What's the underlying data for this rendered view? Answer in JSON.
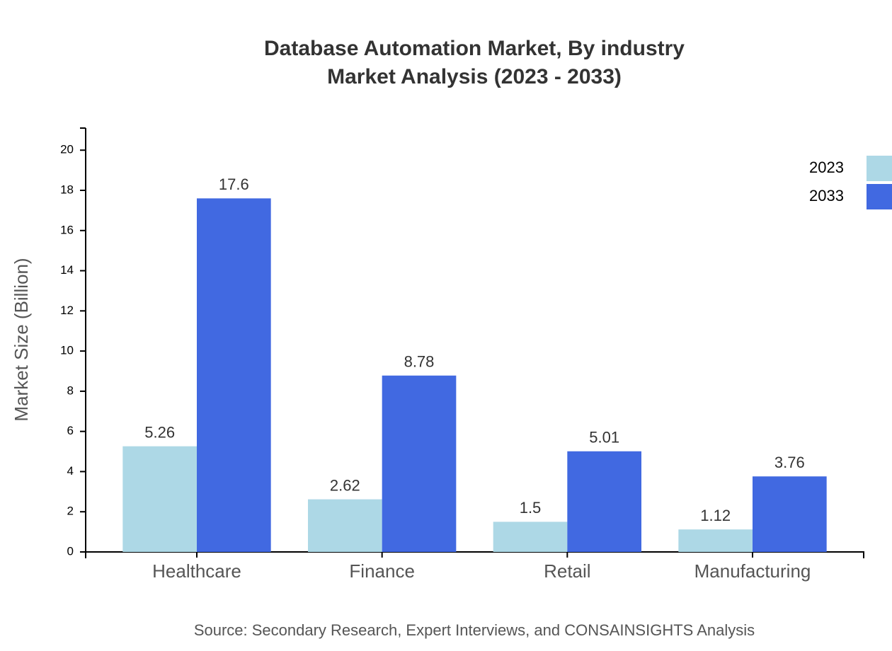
{
  "chart_data": {
    "type": "grouped-bar",
    "title": "Database Automation Market, By industry",
    "subtitle": "Market Analysis (2023 - 2033)",
    "y_label": "Market Size (Billion)",
    "source": "Source: Secondary Research, Expert Interviews, and CONSAINSIGHTS Analysis",
    "categories": [
      "Healthcare",
      "Finance",
      "Retail",
      "Manufacturing"
    ],
    "series": [
      {
        "name": "2023",
        "color": "#add8e6",
        "values": [
          5.26,
          2.62,
          1.5,
          1.12
        ]
      },
      {
        "name": "2033",
        "color": "#4169e1",
        "values": [
          17.6,
          8.78,
          5.01,
          3.76
        ]
      }
    ],
    "ylim": [
      0,
      21.1
    ],
    "yticks": [
      0,
      2,
      4,
      6,
      8,
      10,
      12,
      14,
      16,
      18,
      20
    ],
    "grid": false,
    "legend": "top-right"
  }
}
